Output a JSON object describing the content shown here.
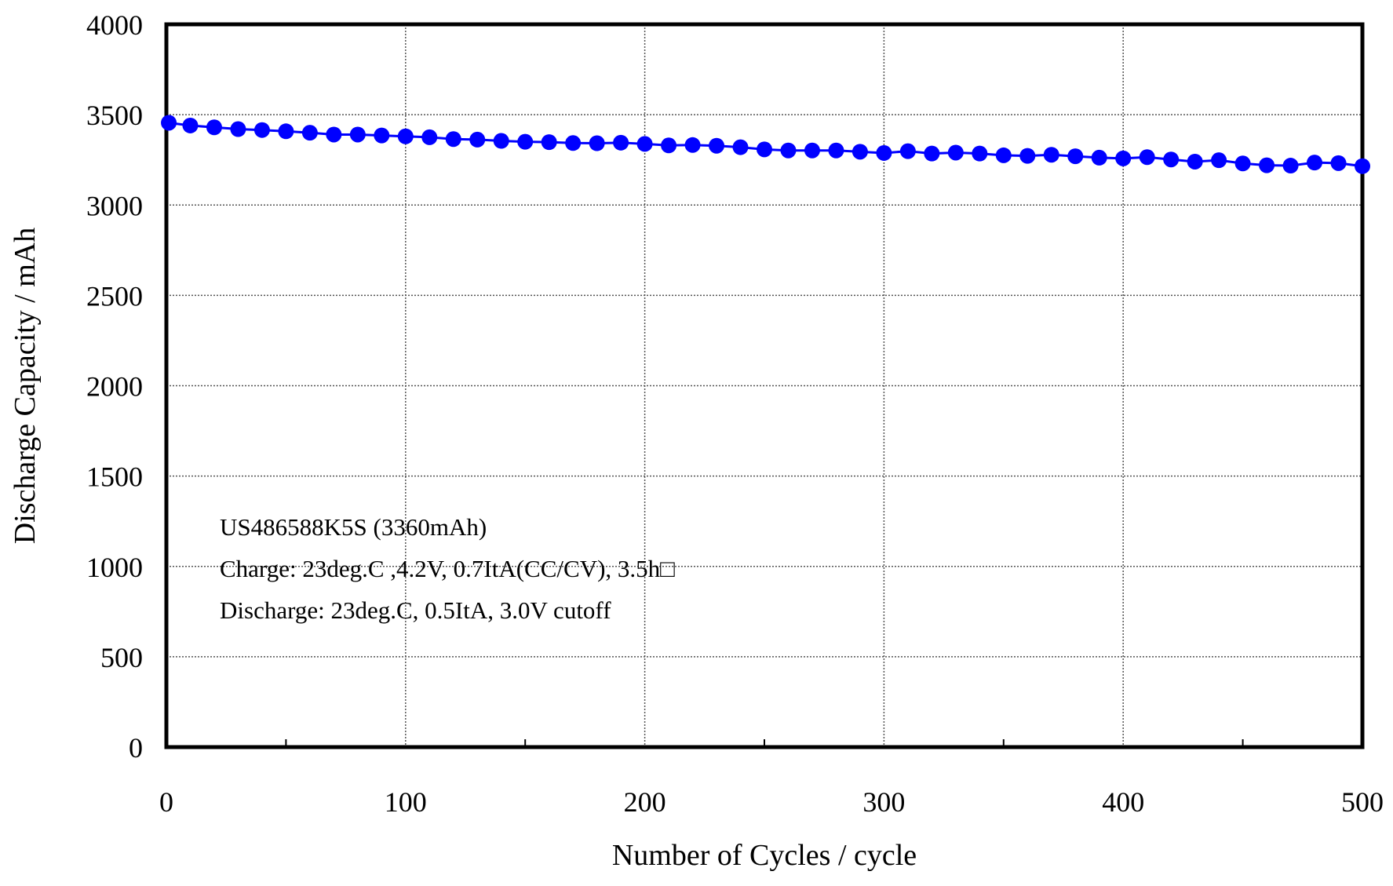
{
  "chart_data": {
    "type": "line",
    "title": "",
    "xlabel": "Number of Cycles / cycle",
    "ylabel": "Discharge Capacity / mAh",
    "xlim": [
      0,
      500
    ],
    "ylim": [
      0,
      4000
    ],
    "x_ticks": [
      "0",
      "100",
      "200",
      "300",
      "400",
      "500"
    ],
    "y_ticks": [
      "0",
      "500",
      "1000",
      "1500",
      "2000",
      "2500",
      "3000",
      "3500",
      "4000"
    ],
    "grid": true,
    "legend": "none",
    "marker": "circle",
    "series_color": "#0000ff",
    "annotations": [
      "US486588K5S (3360mAh)",
      "Charge: 23deg.C ,4.2V, 0.7ItA(CC/CV), 3.5h□",
      "Discharge: 23deg.C, 0.5ItA, 3.0V cutoff"
    ],
    "series": [
      {
        "x": [
          1,
          10,
          20,
          30,
          40,
          50,
          60,
          70,
          80,
          90,
          100,
          110,
          120,
          130,
          140,
          150,
          160,
          170,
          180,
          190,
          200,
          210,
          220,
          230,
          240,
          250,
          260,
          270,
          280,
          290,
          300,
          310,
          320,
          330,
          340,
          350,
          360,
          370,
          380,
          390,
          400,
          410,
          420,
          430,
          440,
          450,
          460,
          470,
          480,
          490,
          500
        ],
        "values": [
          3455,
          3440,
          3430,
          3420,
          3415,
          3408,
          3400,
          3390,
          3390,
          3385,
          3380,
          3375,
          3365,
          3362,
          3355,
          3350,
          3348,
          3343,
          3342,
          3345,
          3338,
          3330,
          3332,
          3328,
          3320,
          3308,
          3302,
          3302,
          3302,
          3295,
          3288,
          3298,
          3285,
          3290,
          3285,
          3275,
          3272,
          3278,
          3270,
          3262,
          3258,
          3265,
          3252,
          3240,
          3248,
          3230,
          3220,
          3218,
          3235,
          3232,
          3215
        ]
      }
    ]
  }
}
